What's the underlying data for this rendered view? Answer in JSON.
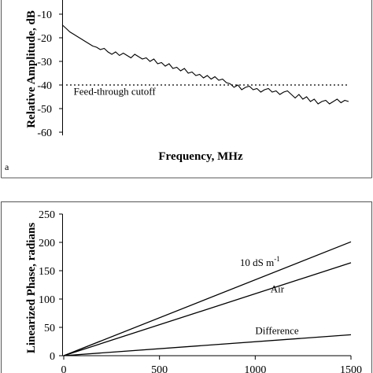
{
  "chart_data": [
    {
      "type": "line",
      "panel_label": "a",
      "xlabel": "Frequency, MHz",
      "ylabel": "Relative Amplitude, dB",
      "ylim": [
        -60,
        -5
      ],
      "yticks": [
        -10,
        -20,
        -30,
        -40,
        -50,
        -60
      ],
      "yticklabels": [
        "-10",
        "-20",
        "-30",
        "-40",
        "-50",
        "-60"
      ],
      "xlim": [
        0,
        1500
      ],
      "grid": false,
      "series": [
        {
          "x": [
            0,
            20,
            40,
            60,
            80,
            100,
            120,
            140,
            160,
            180,
            200,
            220,
            240,
            260,
            280,
            300,
            320,
            340,
            360,
            380,
            400,
            420,
            440,
            460,
            480,
            500,
            520,
            540,
            560,
            580,
            600,
            620,
            640,
            660,
            680,
            700,
            720,
            740,
            760,
            780,
            800,
            820,
            840,
            860,
            880,
            900,
            920,
            940,
            960,
            980,
            1000,
            1020,
            1040,
            1060,
            1080,
            1100,
            1120,
            1140,
            1160,
            1180,
            1200,
            1220,
            1240,
            1260,
            1280,
            1300,
            1320,
            1340,
            1360,
            1380,
            1400,
            1420,
            1440,
            1460,
            1480,
            1500
          ],
          "y": [
            -14.5,
            -16,
            -17.5,
            -18.5,
            -19.5,
            -20.5,
            -21.5,
            -22.5,
            -23.5,
            -24,
            -25,
            -24.5,
            -26,
            -27,
            -26,
            -27.5,
            -26.5,
            -27.5,
            -28.5,
            -27,
            -28,
            -29,
            -28.5,
            -30,
            -29,
            -31,
            -30.5,
            -32,
            -31,
            -33,
            -32.5,
            -34,
            -33,
            -35,
            -34.5,
            -36,
            -35.5,
            -37,
            -36,
            -37.5,
            -36.5,
            -38,
            -37.5,
            -39,
            -39.5,
            -41,
            -40,
            -42,
            -41,
            -40.5,
            -42,
            -41.5,
            -43,
            -42,
            -41.5,
            -43,
            -42.5,
            -44,
            -43,
            -42.5,
            -44,
            -45.5,
            -44,
            -46,
            -45,
            -47,
            -46,
            -48,
            -47,
            -46.5,
            -48,
            -47,
            -46,
            -47.5,
            -46.5,
            -47
          ]
        },
        {
          "name": "Feed-through cutoff",
          "style": "dotted",
          "x": [
            0,
            1500
          ],
          "y": [
            -40,
            -40
          ]
        }
      ],
      "annotations": [
        {
          "text": "Feed-through cutoff",
          "x": 60,
          "y": -43.5
        }
      ]
    },
    {
      "type": "line",
      "xlabel": "",
      "ylabel": "Linearized Phase, radians",
      "xlim": [
        0,
        1500
      ],
      "ylim": [
        0,
        250
      ],
      "yticks": [
        0,
        50,
        100,
        150,
        200,
        250
      ],
      "yticklabels": [
        "0",
        "50",
        "100",
        "150",
        "200",
        "250"
      ],
      "xticks": [
        0,
        500,
        1000,
        1500
      ],
      "xticklabels": [
        "0",
        "500",
        "1000",
        "1500"
      ],
      "grid": false,
      "series": [
        {
          "x": [
            0,
            1500
          ],
          "y": [
            0,
            201
          ]
        },
        {
          "x": [
            0,
            1500
          ],
          "y": [
            0,
            164
          ]
        },
        {
          "x": [
            0,
            1500
          ],
          "y": [
            0,
            37
          ]
        }
      ],
      "annotations": [
        {
          "text": "10 dS m",
          "superscript": "-1",
          "x": 920,
          "y": 158
        },
        {
          "text": "Air",
          "x": 1080,
          "y": 112
        },
        {
          "text": "Difference",
          "x": 1000,
          "y": 38
        }
      ]
    }
  ]
}
